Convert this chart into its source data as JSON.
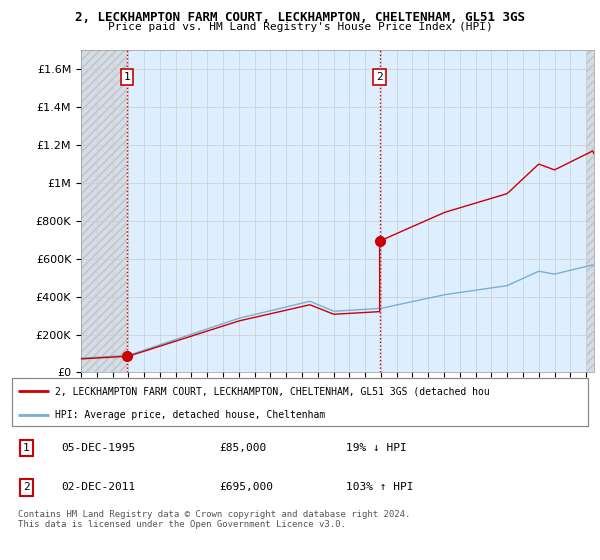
{
  "title": "2, LECKHAMPTON FARM COURT, LECKHAMPTON, CHELTENHAM, GL51 3GS",
  "subtitle": "Price paid vs. HM Land Registry's House Price Index (HPI)",
  "legend_line1": "2, LECKHAMPTON FARM COURT, LECKHAMPTON, CHELTENHAM, GL51 3GS (detached hou",
  "legend_line2": "HPI: Average price, detached house, Cheltenham",
  "sale1_date": "05-DEC-1995",
  "sale1_price": "£85,000",
  "sale1_hpi": "19% ↓ HPI",
  "sale2_date": "02-DEC-2011",
  "sale2_price": "£695,000",
  "sale2_hpi": "103% ↑ HPI",
  "footer": "Contains HM Land Registry data © Crown copyright and database right 2024.\nThis data is licensed under the Open Government Licence v3.0.",
  "hpi_color": "#7aaed4",
  "price_color": "#cc0000",
  "vline_color": "#cc0000",
  "ylim": [
    0,
    1700000
  ],
  "sale1_year": 1995.92,
  "sale2_year": 2011.92,
  "sale1_price_val": 85000,
  "sale2_price_val": 695000,
  "plot_bg_color": "#ddeeff",
  "hatch_color": "#aaaaaa",
  "grid_color": "#cccccc"
}
